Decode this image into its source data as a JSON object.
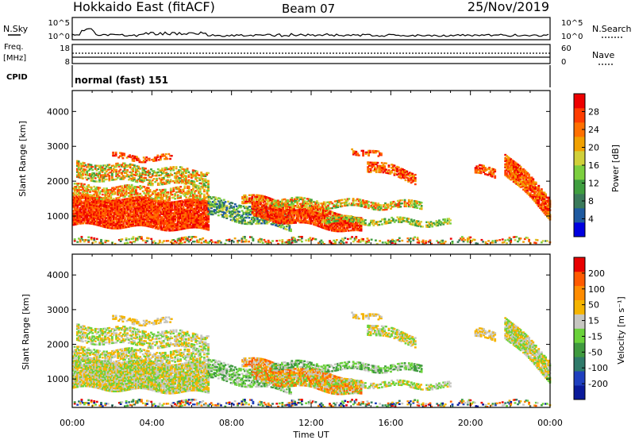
{
  "header": {
    "site": "Hokkaido East (fitACF)",
    "beam": "Beam 07",
    "date": "25/Nov/2019"
  },
  "top_panels": {
    "nsky_label": "N.Sky",
    "nsky_ticks": [
      "10^5",
      "10^0"
    ],
    "nsearch_label": "N.Search",
    "nsearch_ticks": [
      "10^5",
      "10^0"
    ],
    "freq_label": "Freq.",
    "freq_unit": "[MHz]",
    "freq_ticks": [
      "18",
      "8"
    ],
    "nave_label": "Nave",
    "nave_ticks": [
      "60",
      "0"
    ],
    "cpid_label": "CPID",
    "cpid_value": "normal (fast) 151"
  },
  "chart_data": [
    {
      "type": "heatmap",
      "name": "power",
      "ylabel": "Slant Range [km]",
      "y_ticks": [
        "1000",
        "2000",
        "3000",
        "4000"
      ],
      "ylim": [
        180,
        4600
      ],
      "xlim": [
        0,
        24
      ],
      "colorbar_label": "Power [dB]",
      "colorbar_ticks": [
        "28",
        "24",
        "20",
        "16",
        "12",
        "8",
        "4"
      ],
      "colorbar_colors": [
        "#0000e0",
        "#1e5aa0",
        "#3a7a5a",
        "#3f9e3f",
        "#7ccf3f",
        "#d0d03a",
        "#f0a000",
        "#ff7000",
        "#ff3c00",
        "#ee0000"
      ]
    },
    {
      "type": "heatmap",
      "name": "velocity",
      "ylabel": "Slant Range [km]",
      "y_ticks": [
        "1000",
        "2000",
        "3000",
        "4000"
      ],
      "ylim": [
        180,
        4600
      ],
      "xlim": [
        0,
        24
      ],
      "colorbar_label": "Velocity [m s⁻¹]",
      "colorbar_ticks": [
        "200",
        "100",
        "50",
        "15",
        "-15",
        "-50",
        "-100",
        "-200"
      ],
      "colorbar_colors": [
        "#0a1a9a",
        "#1f3fbf",
        "#2f7a6a",
        "#3f9a3f",
        "#6ad23a",
        "#c6c6c0",
        "#f5b400",
        "#ff8c00",
        "#ff5a00",
        "#e80000"
      ]
    }
  ],
  "x_axis": {
    "ticks": [
      "00:00",
      "04:00",
      "08:00",
      "12:00",
      "16:00",
      "20:00",
      "00:00"
    ],
    "label": "Time UT"
  }
}
